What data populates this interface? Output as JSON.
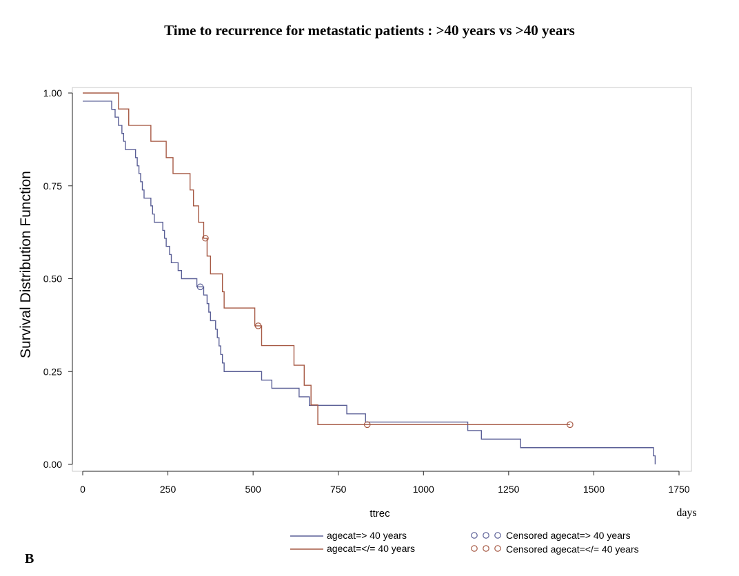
{
  "panel_letter": "B",
  "chart_data": {
    "type": "line",
    "title": "Time to recurrence for metastatic patients : >40 years vs >40 years",
    "xlabel": "ttrec",
    "xunit": "days",
    "ylabel": "Survival Distribution Function",
    "xlim": [
      0,
      1750
    ],
    "ylim": [
      0,
      1
    ],
    "xticks": [
      0,
      250,
      500,
      750,
      1000,
      1250,
      1500,
      1750
    ],
    "xtick_labels": [
      "0",
      "250",
      "500",
      "750",
      "1000",
      "1250",
      "1500",
      "1750"
    ],
    "yticks": [
      0,
      0.25,
      0.5,
      0.75,
      1.0
    ],
    "ytick_labels": [
      "0.00",
      "0.25",
      "0.50",
      "0.75",
      "1.00"
    ],
    "grid": false,
    "legend_position": "bottom",
    "series": [
      {
        "name": "agecat=> 40 years",
        "color": "#5a5f96",
        "censor_name": "Censored agecat=> 40 years",
        "steps": [
          [
            0,
            0.978
          ],
          [
            85,
            0.956
          ],
          [
            95,
            0.935
          ],
          [
            105,
            0.913
          ],
          [
            115,
            0.891
          ],
          [
            120,
            0.87
          ],
          [
            125,
            0.848
          ],
          [
            155,
            0.826
          ],
          [
            160,
            0.804
          ],
          [
            165,
            0.783
          ],
          [
            170,
            0.761
          ],
          [
            175,
            0.739
          ],
          [
            180,
            0.717
          ],
          [
            200,
            0.696
          ],
          [
            205,
            0.674
          ],
          [
            210,
            0.652
          ],
          [
            235,
            0.63
          ],
          [
            240,
            0.609
          ],
          [
            245,
            0.587
          ],
          [
            255,
            0.565
          ],
          [
            260,
            0.543
          ],
          [
            280,
            0.522
          ],
          [
            290,
            0.5
          ],
          [
            335,
            0.478
          ],
          [
            355,
            0.456
          ],
          [
            365,
            0.433
          ],
          [
            370,
            0.41
          ],
          [
            375,
            0.387
          ],
          [
            390,
            0.364
          ],
          [
            395,
            0.341
          ],
          [
            400,
            0.319
          ],
          [
            405,
            0.296
          ],
          [
            410,
            0.273
          ],
          [
            415,
            0.25
          ],
          [
            525,
            0.227
          ],
          [
            555,
            0.205
          ],
          [
            635,
            0.182
          ],
          [
            665,
            0.159
          ],
          [
            775,
            0.136
          ],
          [
            830,
            0.114
          ],
          [
            1130,
            0.091
          ],
          [
            1170,
            0.068
          ],
          [
            1285,
            0.045
          ],
          [
            1675,
            0.023
          ],
          [
            1680,
            0.0
          ]
        ],
        "end_x": 1680,
        "censored": [
          [
            345,
            0.478
          ]
        ]
      },
      {
        "name": "agecat=</= 40 years",
        "color": "#a65944",
        "censor_name": "Censored agecat=</= 40 years",
        "steps": [
          [
            0,
            1.0
          ],
          [
            105,
            0.957
          ],
          [
            135,
            0.913
          ],
          [
            200,
            0.87
          ],
          [
            245,
            0.826
          ],
          [
            265,
            0.783
          ],
          [
            315,
            0.739
          ],
          [
            325,
            0.696
          ],
          [
            340,
            0.652
          ],
          [
            355,
            0.609
          ],
          [
            365,
            0.561
          ],
          [
            375,
            0.513
          ],
          [
            410,
            0.465
          ],
          [
            415,
            0.421
          ],
          [
            505,
            0.373
          ],
          [
            525,
            0.32
          ],
          [
            620,
            0.267
          ],
          [
            650,
            0.213
          ],
          [
            670,
            0.16
          ],
          [
            690,
            0.107
          ]
        ],
        "end_x": 1430,
        "censored": [
          [
            360,
            0.609
          ],
          [
            515,
            0.373
          ],
          [
            835,
            0.107
          ],
          [
            1430,
            0.107
          ]
        ]
      }
    ]
  }
}
